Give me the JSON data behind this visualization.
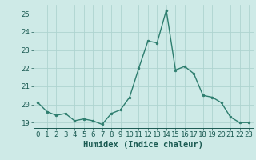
{
  "x": [
    0,
    1,
    2,
    3,
    4,
    5,
    6,
    7,
    8,
    9,
    10,
    11,
    12,
    13,
    14,
    15,
    16,
    17,
    18,
    19,
    20,
    21,
    22,
    23
  ],
  "y": [
    20.1,
    19.6,
    19.4,
    19.5,
    19.1,
    19.2,
    19.1,
    18.9,
    19.5,
    19.7,
    20.4,
    22.0,
    23.5,
    23.4,
    25.2,
    21.9,
    22.1,
    21.7,
    20.5,
    20.4,
    20.1,
    19.3,
    19.0,
    19.0
  ],
  "line_color": "#2d7d6e",
  "marker": "o",
  "marker_size": 2.0,
  "linewidth": 1.0,
  "bg_color": "#ceeae7",
  "grid_color": "#aed4d0",
  "xlabel": "Humidex (Indice chaleur)",
  "ylim": [
    18.7,
    25.5
  ],
  "xlim": [
    -0.5,
    23.5
  ],
  "yticks": [
    19,
    20,
    21,
    22,
    23,
    24,
    25
  ],
  "xticks": [
    0,
    1,
    2,
    3,
    4,
    5,
    6,
    7,
    8,
    9,
    10,
    11,
    12,
    13,
    14,
    15,
    16,
    17,
    18,
    19,
    20,
    21,
    22,
    23
  ],
  "tick_labelsize": 6.5,
  "xlabel_fontsize": 7.5,
  "xlabel_fontweight": "bold"
}
